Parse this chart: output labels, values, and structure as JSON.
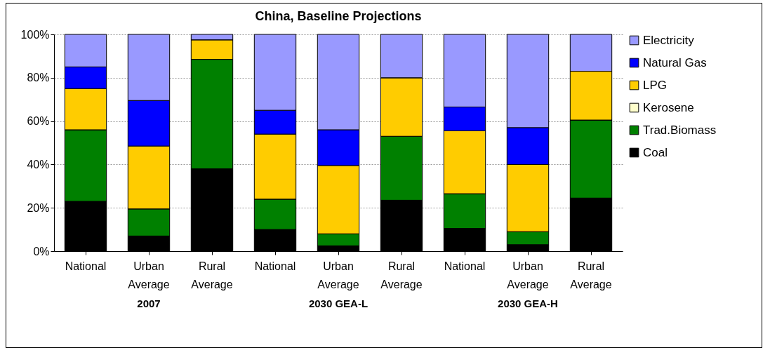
{
  "chart_data": {
    "type": "bar",
    "title": "China, Baseline Projections",
    "stacked": true,
    "categories": [
      "National",
      "Urban Average",
      "Rural Average",
      "National",
      "Urban Average",
      "Rural Average",
      "National",
      "Urban Average",
      "Rural Average"
    ],
    "series": [
      {
        "name": "Coal",
        "color": "#000000",
        "values": [
          23,
          7,
          38,
          10,
          2.5,
          23.5,
          10.5,
          3,
          24.5
        ]
      },
      {
        "name": "Trad.Biomass",
        "color": "#008000",
        "values": [
          33,
          12.5,
          50.5,
          14,
          5.5,
          29.5,
          16,
          6,
          36
        ]
      },
      {
        "name": "Kerosene",
        "color": "#ffffcc",
        "values": [
          0,
          0,
          0,
          0,
          0,
          0,
          0,
          0,
          0
        ]
      },
      {
        "name": "LPG",
        "color": "#ffcc00",
        "values": [
          19,
          29,
          9,
          30,
          31.5,
          27,
          29,
          31,
          22.5
        ]
      },
      {
        "name": "Natural Gas",
        "color": "#0000ff",
        "values": [
          10,
          21,
          0,
          11,
          16.5,
          0,
          11,
          17,
          0
        ]
      },
      {
        "name": "Electricity",
        "color": "#9999ff",
        "values": [
          15,
          30.5,
          2.5,
          35,
          44,
          20,
          33.5,
          43,
          17
        ]
      }
    ],
    "annotations": [
      "2007",
      "2030 GEA-L",
      "2030 GEA-H"
    ],
    "ylim": [
      0,
      100
    ],
    "yticks": [
      {
        "value": 0,
        "label": "0%"
      },
      {
        "value": 20,
        "label": "20%"
      },
      {
        "value": 40,
        "label": "40%"
      },
      {
        "value": 60,
        "label": "60%"
      },
      {
        "value": 80,
        "label": "80%"
      },
      {
        "value": 100,
        "label": "100%"
      }
    ],
    "grid": "y",
    "legend": "right"
  }
}
